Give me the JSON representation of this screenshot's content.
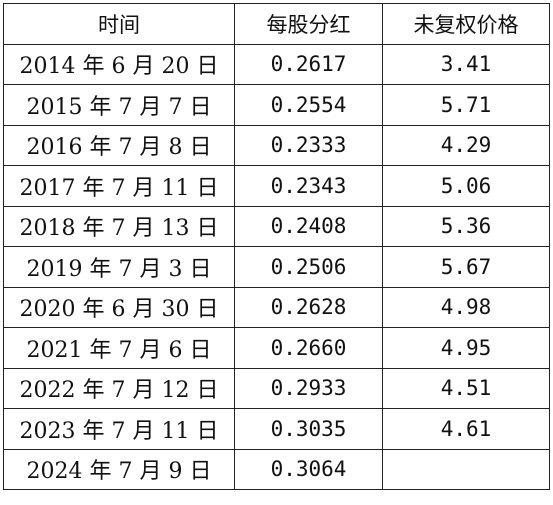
{
  "table": {
    "headers": [
      "时间",
      "每股分红",
      "未复权价格"
    ],
    "rows": [
      {
        "date": "2014 年 6 月 20 日",
        "dividend": "0.2617",
        "price": "3.41"
      },
      {
        "date": "2015 年 7 月 7 日",
        "dividend": "0.2554",
        "price": "5.71"
      },
      {
        "date": "2016 年 7 月 8 日",
        "dividend": "0.2333",
        "price": "4.29"
      },
      {
        "date": "2017 年 7 月 11 日",
        "dividend": "0.2343",
        "price": "5.06"
      },
      {
        "date": "2018 年 7 月 13 日",
        "dividend": "0.2408",
        "price": "5.36"
      },
      {
        "date": "2019 年 7 月 3 日",
        "dividend": "0.2506",
        "price": "5.67"
      },
      {
        "date": "2020 年 6 月 30 日",
        "dividend": "0.2628",
        "price": "4.98"
      },
      {
        "date": "2021 年 7 月 6 日",
        "dividend": "0.2660",
        "price": "4.95"
      },
      {
        "date": "2022 年 7 月 12 日",
        "dividend": "0.2933",
        "price": "4.51"
      },
      {
        "date": "2023 年 7 月 11 日",
        "dividend": "0.3035",
        "price": "4.61"
      },
      {
        "date": "2024 年 7 月 9 日",
        "dividend": "0.3064",
        "price": ""
      }
    ]
  }
}
